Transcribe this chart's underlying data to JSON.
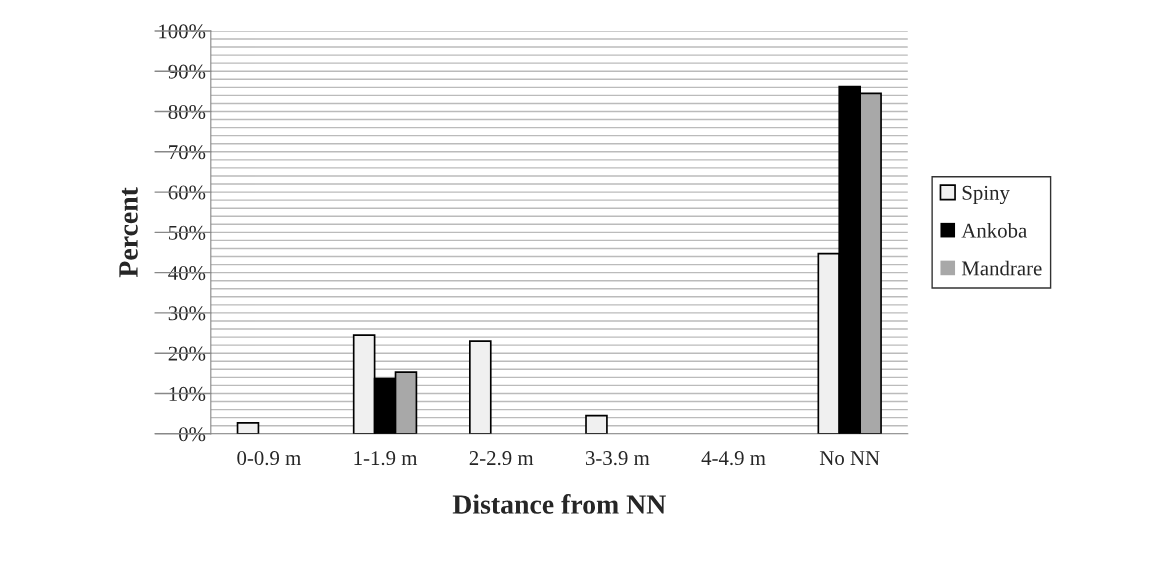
{
  "chart_data": {
    "type": "bar",
    "xlabel": "Distance from NN",
    "ylabel": "Percent",
    "categories": [
      "0-0.9 m",
      "1-1.9 m",
      "2-2.9 m",
      "3-3.9 m",
      "4-4.9 m",
      "No NN"
    ],
    "series": [
      {
        "name": "Spiny",
        "color": "#f0f0f0",
        "values": [
          2.7,
          24.5,
          23,
          4.5,
          0,
          44.7
        ]
      },
      {
        "name": "Ankoba",
        "color": "#000000",
        "values": [
          0,
          13.7,
          0,
          0,
          0,
          86.2
        ]
      },
      {
        "name": "Mandrare",
        "color": "#a8a8a8",
        "values": [
          0,
          15.3,
          0,
          0,
          0,
          84.5
        ]
      }
    ],
    "ylim": [
      0,
      100
    ],
    "yticks": [
      {
        "value": 0,
        "label": "0%"
      },
      {
        "value": 2,
        "label": null
      },
      {
        "value": 4,
        "label": null
      },
      {
        "value": 6,
        "label": null
      },
      {
        "value": 8,
        "label": null
      },
      {
        "value": 10,
        "label": "10%"
      },
      {
        "value": 12,
        "label": null
      },
      {
        "value": 14,
        "label": null
      },
      {
        "value": 16,
        "label": null
      },
      {
        "value": 18,
        "label": null
      },
      {
        "value": 20,
        "label": "20%"
      },
      {
        "value": 22,
        "label": null
      },
      {
        "value": 24,
        "label": null
      },
      {
        "value": 26,
        "label": null
      },
      {
        "value": 28,
        "label": null
      },
      {
        "value": 30,
        "label": "30%"
      },
      {
        "value": 32,
        "label": null
      },
      {
        "value": 34,
        "label": null
      },
      {
        "value": 36,
        "label": null
      },
      {
        "value": 38,
        "label": null
      },
      {
        "value": 40,
        "label": "40%"
      },
      {
        "value": 42,
        "label": null
      },
      {
        "value": 44,
        "label": null
      },
      {
        "value": 46,
        "label": null
      },
      {
        "value": 48,
        "label": null
      },
      {
        "value": 50,
        "label": "50%"
      },
      {
        "value": 52,
        "label": null
      },
      {
        "value": 54,
        "label": null
      },
      {
        "value": 56,
        "label": null
      },
      {
        "value": 58,
        "label": null
      },
      {
        "value": 60,
        "label": "60%"
      },
      {
        "value": 62,
        "label": null
      },
      {
        "value": 64,
        "label": null
      },
      {
        "value": 66,
        "label": null
      },
      {
        "value": 68,
        "label": null
      },
      {
        "value": 70,
        "label": "70%"
      },
      {
        "value": 72,
        "label": null
      },
      {
        "value": 74,
        "label": null
      },
      {
        "value": 76,
        "label": null
      },
      {
        "value": 78,
        "label": null
      },
      {
        "value": 80,
        "label": "80%"
      },
      {
        "value": 82,
        "label": null
      },
      {
        "value": 84,
        "label": null
      },
      {
        "value": 86,
        "label": null
      },
      {
        "value": 88,
        "label": null
      },
      {
        "value": 90,
        "label": "90%"
      },
      {
        "value": 92,
        "label": null
      },
      {
        "value": 94,
        "label": null
      },
      {
        "value": 96,
        "label": null
      },
      {
        "value": 98,
        "label": null
      },
      {
        "value": 100,
        "label": "100%"
      }
    ],
    "grid": "y",
    "legend": "right"
  }
}
